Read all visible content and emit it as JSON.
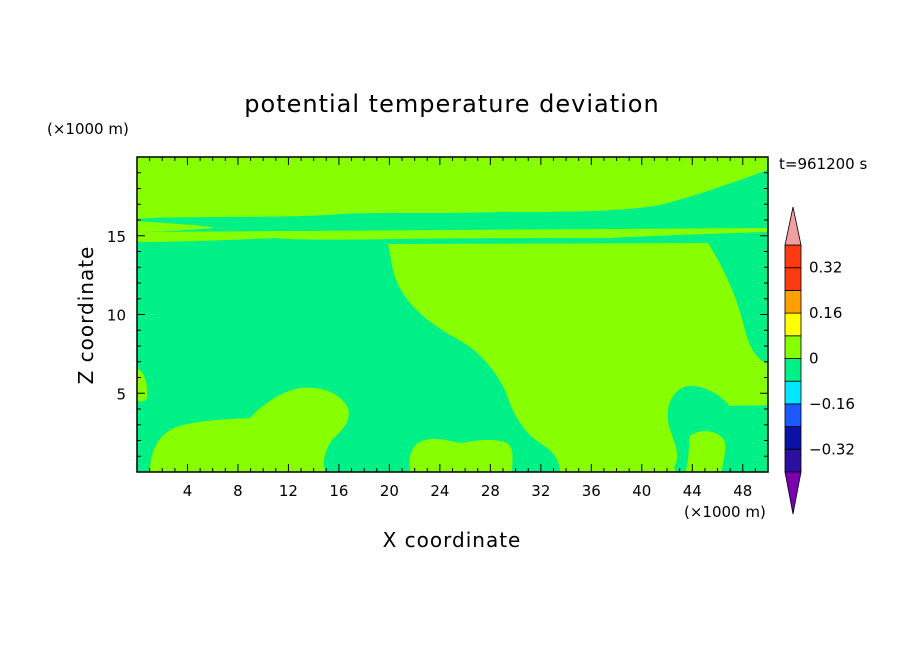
{
  "chart_data": {
    "type": "heatmap",
    "title": "potential temperature deviation",
    "xlabel": "X coordinate",
    "ylabel": "Z coordinate",
    "x_unit": "(×1000 m)",
    "y_unit": "(×1000 m)",
    "time_label": "t=961200 s",
    "xlim": [
      0,
      50
    ],
    "ylim": [
      0,
      20
    ],
    "x_ticks": [
      4,
      8,
      12,
      16,
      20,
      24,
      28,
      32,
      36,
      40,
      44,
      48
    ],
    "y_ticks": [
      5,
      10,
      15
    ],
    "colorbar": {
      "levels": [
        -0.4,
        -0.32,
        -0.24,
        -0.16,
        -0.08,
        0,
        0.08,
        0.16,
        0.24,
        0.32,
        0.4
      ],
      "colors": [
        "#7a00b0",
        "#2a0fa0",
        "#0a10a8",
        "#1a5aff",
        "#00e8ff",
        "#00f088",
        "#88ff00",
        "#ffff00",
        "#ffa000",
        "#ff3a10",
        "#f0a0a0"
      ],
      "tick_labels": [
        "0.32",
        "0.16",
        "0",
        "-0.16",
        "-0.32"
      ],
      "tick_values": [
        0.32,
        0.16,
        0,
        -0.16,
        -0.32
      ],
      "extend": "both"
    },
    "fill_classes": {
      "background": "-0.08 to 0",
      "regions": "0 to 0.08"
    }
  },
  "colors": {
    "low": "#00f088",
    "high": "#88ff00"
  }
}
